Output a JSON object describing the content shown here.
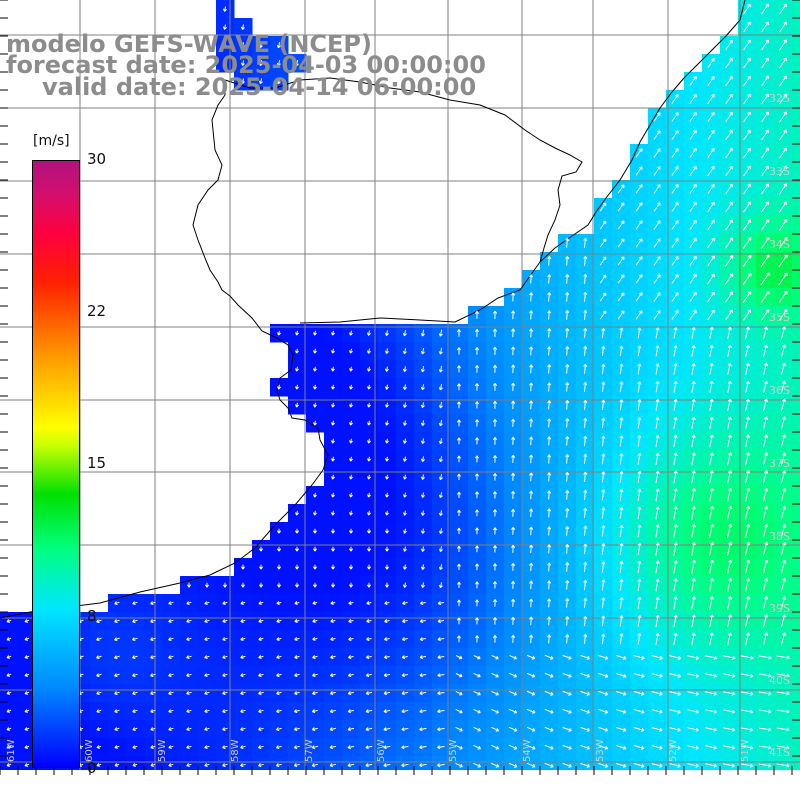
{
  "title": {
    "line1": "modelo GEFS-WAVE (NCEP)",
    "line2": "forecast date: 2025-04-03 00:00:00",
    "line3": "valid date: 2025-04-14 06:00:00"
  },
  "colorbar": {
    "unit": "[m/s]",
    "ticks": [
      "30",
      "22",
      "15",
      "8",
      "0"
    ],
    "tick_values": [
      30,
      22,
      15,
      8,
      0
    ],
    "range": [
      0,
      30
    ]
  },
  "lat_labels": [
    "32S",
    "33S",
    "34S",
    "35S",
    "36S",
    "37S",
    "38S",
    "39S",
    "40S",
    "41S"
  ],
  "lon_labels": [
    "61W",
    "60W",
    "59W",
    "58W",
    "57W",
    "56W",
    "55W",
    "54W",
    "53W",
    "52W",
    "51W"
  ],
  "colors": {
    "land": "#ffffff",
    "grid": "#808080",
    "coast": "#000000",
    "vector": "#ffffff",
    "title": "#8c8c8c"
  }
}
